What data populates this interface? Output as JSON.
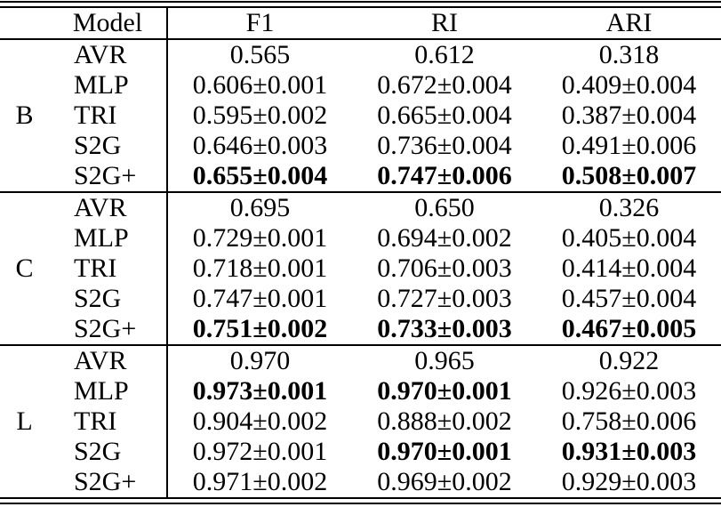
{
  "table": {
    "header": {
      "group": "",
      "model": "Model",
      "metrics": [
        "F1",
        "RI",
        "ARI"
      ]
    },
    "sections": [
      {
        "group": "B",
        "rows": [
          {
            "model": "AVR",
            "f1": "0.565",
            "ri": "0.612",
            "ari": "0.318",
            "bold": []
          },
          {
            "model": "MLP",
            "f1": "0.606±0.001",
            "ri": "0.672±0.004",
            "ari": "0.409±0.004",
            "bold": []
          },
          {
            "model": "TRI",
            "f1": "0.595±0.002",
            "ri": "0.665±0.004",
            "ari": "0.387±0.004",
            "bold": []
          },
          {
            "model": "S2G",
            "f1": "0.646±0.003",
            "ri": "0.736±0.004",
            "ari": "0.491±0.006",
            "bold": []
          },
          {
            "model": "S2G+",
            "f1": "0.655±0.004",
            "ri": "0.747±0.006",
            "ari": "0.508±0.007",
            "bold": [
              "f1",
              "ri",
              "ari"
            ]
          }
        ]
      },
      {
        "group": "C",
        "rows": [
          {
            "model": "AVR",
            "f1": "0.695",
            "ri": "0.650",
            "ari": "0.326",
            "bold": []
          },
          {
            "model": "MLP",
            "f1": "0.729±0.001",
            "ri": "0.694±0.002",
            "ari": "0.405±0.004",
            "bold": []
          },
          {
            "model": "TRI",
            "f1": "0.718±0.001",
            "ri": "0.706±0.003",
            "ari": "0.414±0.004",
            "bold": []
          },
          {
            "model": "S2G",
            "f1": "0.747±0.001",
            "ri": "0.727±0.003",
            "ari": "0.457±0.004",
            "bold": []
          },
          {
            "model": "S2G+",
            "f1": "0.751±0.002",
            "ri": "0.733±0.003",
            "ari": "0.467±0.005",
            "bold": [
              "f1",
              "ri",
              "ari"
            ]
          }
        ]
      },
      {
        "group": "L",
        "rows": [
          {
            "model": "AVR",
            "f1": "0.970",
            "ri": "0.965",
            "ari": "0.922",
            "bold": []
          },
          {
            "model": "MLP",
            "f1": "0.973±0.001",
            "ri": "0.970±0.001",
            "ari": "0.926±0.003",
            "bold": [
              "f1",
              "ri"
            ]
          },
          {
            "model": "TRI",
            "f1": "0.904±0.002",
            "ri": "0.888±0.002",
            "ari": "0.758±0.006",
            "bold": []
          },
          {
            "model": "S2G",
            "f1": "0.972±0.001",
            "ri": "0.970±0.001",
            "ari": "0.931±0.003",
            "bold": [
              "ri",
              "ari"
            ]
          },
          {
            "model": "S2G+",
            "f1": "0.971±0.002",
            "ri": "0.969±0.002",
            "ari": "0.929±0.003",
            "bold": []
          }
        ]
      }
    ]
  }
}
